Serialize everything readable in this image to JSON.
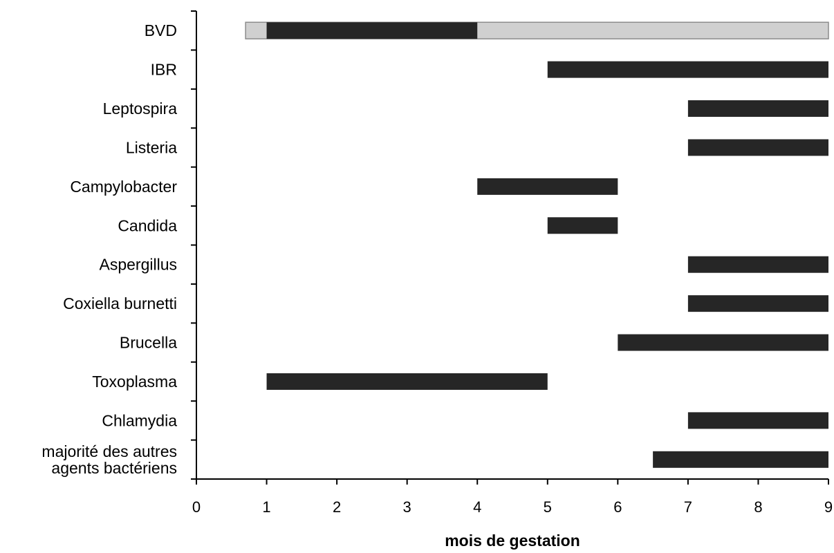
{
  "chart_data": {
    "type": "bar",
    "orientation": "horizontal-range",
    "xlabel": "mois de gestation",
    "ylabel": "",
    "xlim": [
      0,
      9
    ],
    "xticks": [
      "0",
      "1",
      "2",
      "3",
      "4",
      "5",
      "6",
      "7",
      "8",
      "9"
    ],
    "grid": false,
    "categories": [
      [
        "BVD"
      ],
      [
        "IBR"
      ],
      [
        "Leptospira"
      ],
      [
        "Listeria"
      ],
      [
        "Campylobacter"
      ],
      [
        "Candida"
      ],
      [
        "Aspergillus"
      ],
      [
        "Coxiella burnetti"
      ],
      [
        "Brucella"
      ],
      [
        "Toxoplasma"
      ],
      [
        "Chlamydia"
      ],
      [
        "majorité des autres",
        "agents bactériens"
      ]
    ],
    "ranges": [
      [
        1,
        4
      ],
      [
        5,
        9
      ],
      [
        7,
        9
      ],
      [
        7,
        9
      ],
      [
        4,
        6
      ],
      [
        5,
        6
      ],
      [
        7,
        9
      ],
      [
        7,
        9
      ],
      [
        6,
        9
      ],
      [
        1,
        5
      ],
      [
        7,
        9
      ],
      [
        6.5,
        9
      ]
    ],
    "secondary_ranges": [
      {
        "category_index": 0,
        "range": [
          0.7,
          9
        ],
        "color": "#d0d0d0"
      }
    ],
    "colors": {
      "bar": "#262626",
      "secondary_bar": "#d0d0d0",
      "axis": "#000000"
    }
  }
}
